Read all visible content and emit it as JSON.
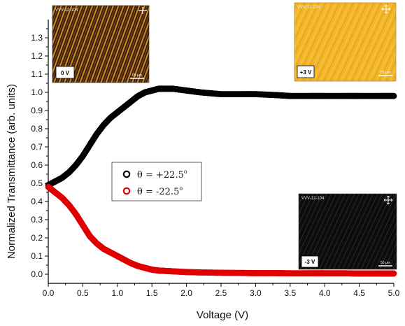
{
  "chart_data": {
    "type": "scatter",
    "title": "",
    "xlabel": "Voltage (V)",
    "ylabel": "Normalized Transmittance (arb. units)",
    "xlim": [
      0.0,
      5.0
    ],
    "ylim": [
      -0.05,
      1.4
    ],
    "xticks": [
      0.0,
      0.5,
      1.0,
      1.5,
      2.0,
      2.5,
      3.0,
      3.5,
      4.0,
      4.5,
      5.0
    ],
    "yticks": [
      0.0,
      0.1,
      0.2,
      0.3,
      0.4,
      0.5,
      0.6,
      0.7,
      0.8,
      0.9,
      1.0,
      1.1,
      1.2,
      1.3
    ],
    "xtick_labels": [
      "0.0",
      "0.5",
      "1.0",
      "1.5",
      "2.0",
      "2.5",
      "3.0",
      "3.5",
      "4.0",
      "4.5",
      "5.0"
    ],
    "ytick_labels": [
      "0.0",
      "0.1",
      "0.2",
      "0.3",
      "0.4",
      "0.5",
      "0.6",
      "0.7",
      "0.8",
      "0.9",
      "1.0",
      "1.1",
      "1.2",
      "1.3"
    ],
    "grid": false,
    "legend_position": "center-left",
    "series": [
      {
        "name": "θ = +22.5°",
        "label_symbol": "θ",
        "label_sign": "+",
        "label_value": "22.5",
        "label_unit": "o",
        "color": "#000000",
        "marker": "open-circle",
        "x": [
          0.0,
          0.1,
          0.2,
          0.3,
          0.4,
          0.5,
          0.6,
          0.7,
          0.8,
          0.9,
          1.0,
          1.1,
          1.2,
          1.3,
          1.4,
          1.5,
          1.6,
          1.7,
          1.8,
          2.0,
          2.2,
          2.5,
          2.8,
          3.0,
          3.3,
          3.5,
          3.8,
          4.0,
          4.3,
          4.5,
          4.8,
          5.0
        ],
        "y": [
          0.49,
          0.51,
          0.53,
          0.56,
          0.6,
          0.65,
          0.71,
          0.77,
          0.82,
          0.86,
          0.89,
          0.92,
          0.95,
          0.98,
          1.0,
          1.01,
          1.02,
          1.02,
          1.02,
          1.01,
          1.0,
          0.99,
          0.99,
          0.99,
          0.985,
          0.98,
          0.98,
          0.98,
          0.98,
          0.98,
          0.98,
          0.98
        ]
      },
      {
        "name": "θ = -22.5°",
        "label_symbol": "θ",
        "label_sign": "-",
        "label_value": "22.5",
        "label_unit": "o",
        "color": "#e00000",
        "marker": "open-circle",
        "x": [
          0.0,
          0.1,
          0.2,
          0.3,
          0.4,
          0.5,
          0.6,
          0.7,
          0.8,
          0.9,
          1.0,
          1.1,
          1.2,
          1.3,
          1.4,
          1.5,
          1.6,
          1.7,
          1.8,
          2.0,
          2.2,
          2.5,
          2.8,
          3.0,
          3.3,
          3.5,
          3.8,
          4.0,
          4.3,
          4.5,
          4.8,
          5.0
        ],
        "y": [
          0.48,
          0.45,
          0.42,
          0.38,
          0.33,
          0.27,
          0.21,
          0.17,
          0.14,
          0.12,
          0.1,
          0.08,
          0.06,
          0.045,
          0.035,
          0.025,
          0.02,
          0.018,
          0.016,
          0.012,
          0.01,
          0.008,
          0.007,
          0.006,
          0.006,
          0.005,
          0.005,
          0.005,
          0.005,
          0.004,
          0.004,
          0.004
        ]
      }
    ],
    "insets": [
      {
        "name": "0 V micrograph",
        "caption": "VVV-12-104",
        "voltage_label": "0 V",
        "scale_label": "50 μm",
        "theme": "dark-orange-stripes"
      },
      {
        "name": "+3 V micrograph",
        "caption": "VVV-12-104",
        "voltage_label": "+3 V",
        "scale_label": "50 μm",
        "theme": "bright-yellow"
      },
      {
        "name": "-3 V micrograph",
        "caption": "VVV-12-104",
        "voltage_label": "-3 V",
        "scale_label": "50 μm",
        "theme": "dark"
      }
    ]
  }
}
